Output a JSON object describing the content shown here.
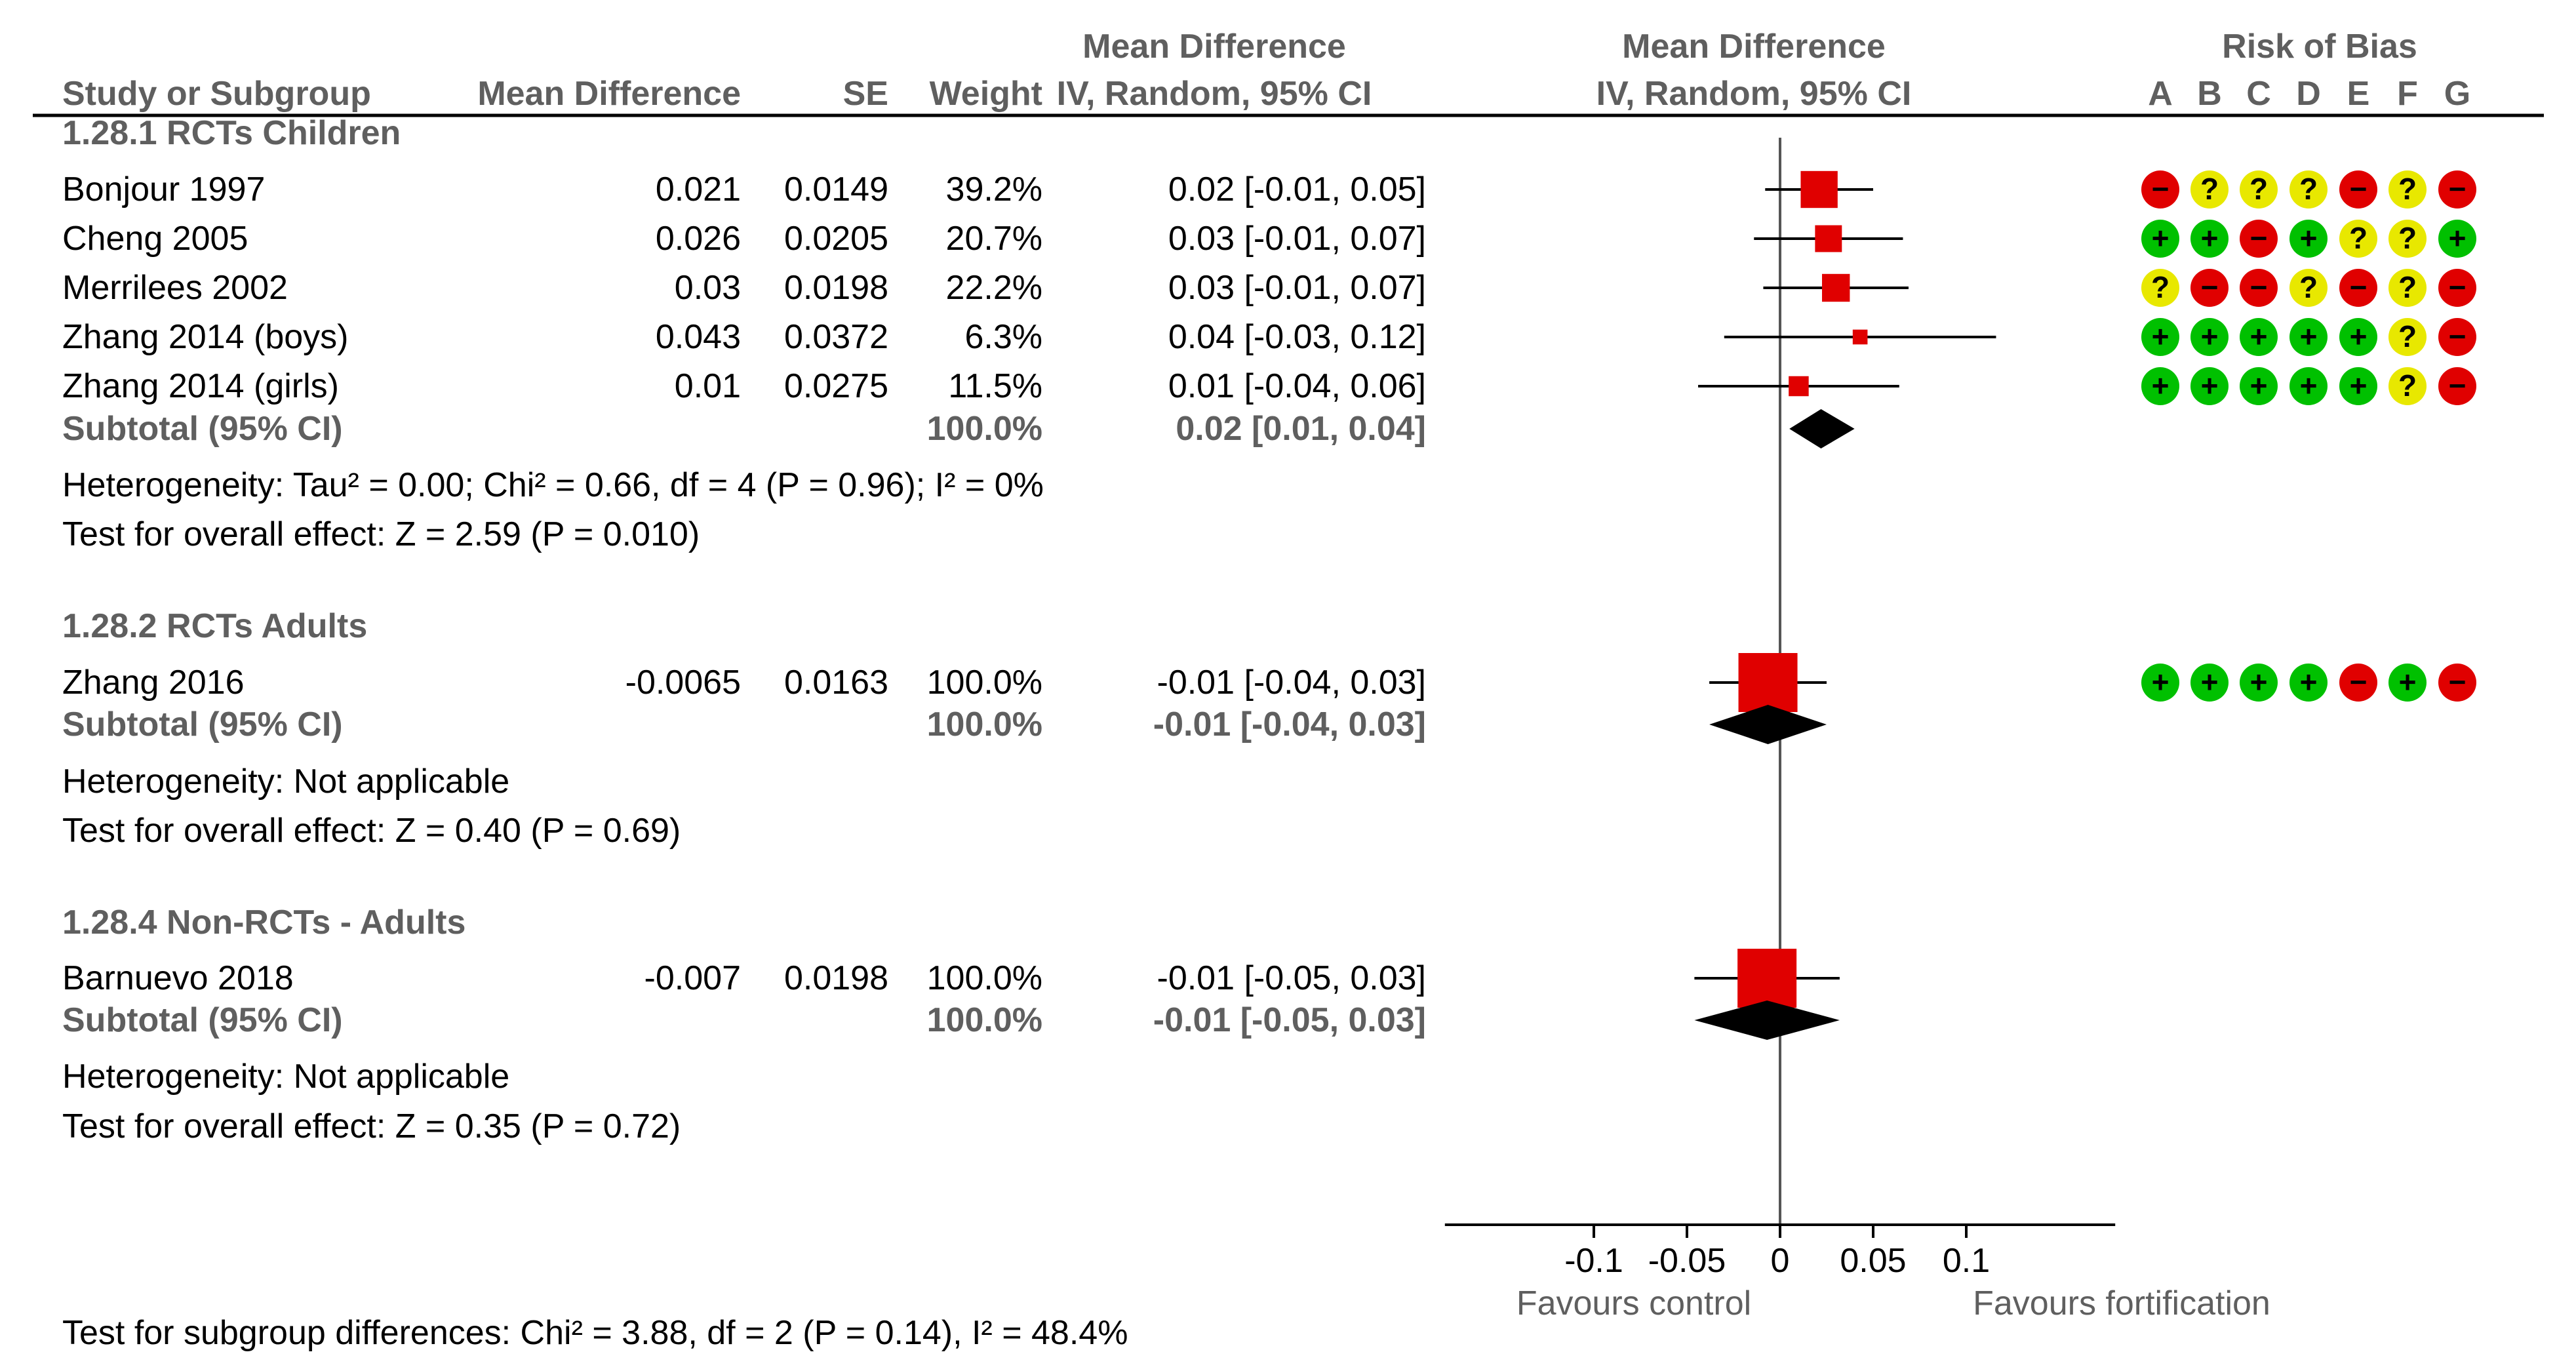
{
  "header": {
    "study": "Study or Subgroup",
    "md": "Mean Difference",
    "se": "SE",
    "weight": "Weight",
    "ci_top": "Mean Difference",
    "ci_bottom": "IV, Random, 95% CI",
    "plot_top": "Mean Difference",
    "plot_bottom": "IV, Random, 95% CI",
    "rob_title": "Risk of Bias",
    "rob_letters": [
      "A",
      "B",
      "C",
      "D",
      "E",
      "F",
      "G"
    ]
  },
  "groups": [
    {
      "title": "1.28.1 RCTs Children",
      "studies": [
        {
          "name": "Bonjour 1997",
          "md": "0.021",
          "se": "0.0149",
          "weight": "39.2%",
          "ci": "0.02 [-0.01, 0.05]",
          "est": 0.021,
          "lo": -0.008,
          "hi": 0.05,
          "w": 39.2,
          "rob": [
            "-",
            "?",
            "?",
            "?",
            "-",
            "?",
            "-"
          ]
        },
        {
          "name": "Cheng 2005",
          "md": "0.026",
          "se": "0.0205",
          "weight": "20.7%",
          "ci": "0.03 [-0.01, 0.07]",
          "est": 0.026,
          "lo": -0.014,
          "hi": 0.066,
          "w": 20.7,
          "rob": [
            "+",
            "+",
            "-",
            "+",
            "?",
            "?",
            "+"
          ]
        },
        {
          "name": "Merrilees 2002",
          "md": "0.03",
          "se": "0.0198",
          "weight": "22.2%",
          "ci": "0.03 [-0.01, 0.07]",
          "est": 0.03,
          "lo": -0.009,
          "hi": 0.069,
          "w": 22.2,
          "rob": [
            "?",
            "-",
            "-",
            "?",
            "-",
            "?",
            "-"
          ]
        },
        {
          "name": "Zhang 2014 (boys)",
          "md": "0.043",
          "se": "0.0372",
          "weight": "6.3%",
          "ci": "0.04 [-0.03, 0.12]",
          "est": 0.043,
          "lo": -0.03,
          "hi": 0.116,
          "w": 6.3,
          "rob": [
            "+",
            "+",
            "+",
            "+",
            "+",
            "?",
            "-"
          ]
        },
        {
          "name": "Zhang 2014 (girls)",
          "md": "0.01",
          "se": "0.0275",
          "weight": "11.5%",
          "ci": "0.01 [-0.04, 0.06]",
          "est": 0.01,
          "lo": -0.044,
          "hi": 0.064,
          "w": 11.5,
          "rob": [
            "+",
            "+",
            "+",
            "+",
            "+",
            "?",
            "-"
          ]
        }
      ],
      "subtotal": {
        "label": "Subtotal (95% CI)",
        "weight": "100.0%",
        "ci": "0.02 [0.01, 0.04]",
        "est": 0.022,
        "lo": 0.005,
        "hi": 0.04
      },
      "heterogeneity": "Heterogeneity: Tau² = 0.00; Chi² = 0.66, df = 4 (P = 0.96); I² = 0%",
      "overall": "Test for overall effect: Z = 2.59 (P = 0.010)"
    },
    {
      "title": "1.28.2 RCTs Adults",
      "studies": [
        {
          "name": "Zhang 2016",
          "md": "-0.0065",
          "se": "0.0163",
          "weight": "100.0%",
          "ci": "-0.01 [-0.04, 0.03]",
          "est": -0.0065,
          "lo": -0.038,
          "hi": 0.025,
          "w": 100,
          "rob": [
            "+",
            "+",
            "+",
            "+",
            "-",
            "+",
            "-"
          ]
        }
      ],
      "subtotal": {
        "label": "Subtotal (95% CI)",
        "weight": "100.0%",
        "ci": "-0.01 [-0.04, 0.03]",
        "est": -0.0065,
        "lo": -0.038,
        "hi": 0.025
      },
      "heterogeneity": "Heterogeneity: Not applicable",
      "overall": "Test for overall effect: Z = 0.40 (P = 0.69)"
    },
    {
      "title": "1.28.4 Non-RCTs - Adults",
      "studies": [
        {
          "name": "Barnuevo 2018",
          "md": "-0.007",
          "se": "0.0198",
          "weight": "100.0%",
          "ci": "-0.01 [-0.05, 0.03]",
          "est": -0.007,
          "lo": -0.046,
          "hi": 0.032,
          "w": 100,
          "rob": []
        }
      ],
      "subtotal": {
        "label": "Subtotal (95% CI)",
        "weight": "100.0%",
        "ci": "-0.01 [-0.05, 0.03]",
        "est": -0.007,
        "lo": -0.046,
        "hi": 0.032
      },
      "heterogeneity": "Heterogeneity: Not applicable",
      "overall": "Test for overall effect: Z = 0.35 (P = 0.72)"
    }
  ],
  "footer": {
    "subgroup_test": "Test for subgroup differences: Chi² = 3.88, df = 2 (P = 0.14), I² = 48.4%"
  },
  "chart_data": {
    "type": "forest",
    "title": "Mean Difference IV, Random, 95% CI",
    "xlim": [
      -0.18,
      0.18
    ],
    "ticks": [
      -0.1,
      -0.05,
      0,
      0.05,
      0.1
    ],
    "tick_labels": [
      "-0.1",
      "-0.05",
      "0",
      "0.05",
      "0.1"
    ],
    "favours_left": "Favours control",
    "favours_right": "Favours fortification",
    "colors": {
      "marker": "#e00000",
      "diamond": "#000000",
      "plus": "#00c000",
      "minus": "#e00000",
      "unclear": "#e8e800",
      "grey_text": "#5f5f5f"
    }
  }
}
